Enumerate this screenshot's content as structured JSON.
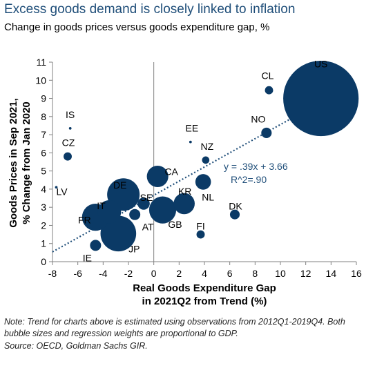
{
  "title": "Excess goods demand is closely linked to inflation",
  "subtitle": "Change in goods prices versus goods expenditure gap, %",
  "notes": [
    "Note: Trend for charts above is estimated using observations from 2012Q1-2019Q4. Both",
    "bubble sizes and regression weights are proportional to GDP.",
    "Source: OECD, Goldman Sachs GIR."
  ],
  "chart_data": {
    "type": "scatter",
    "title": "",
    "xlabel_lines": [
      "Real Goods Expenditure Gap",
      "in 2021Q2 from Trend (%)"
    ],
    "ylabel_lines": [
      "Goods Prices in Sep 2021,",
      "% Change from Jan 2020"
    ],
    "xlim": [
      -8,
      16
    ],
    "ylim": [
      0,
      11
    ],
    "xticks": [
      -8,
      -6,
      -4,
      -2,
      0,
      2,
      4,
      6,
      8,
      10,
      12,
      14,
      16
    ],
    "yticks": [
      0,
      1,
      2,
      3,
      4,
      5,
      6,
      7,
      8,
      9,
      10,
      11
    ],
    "grid": false,
    "bubble_color": "#0b3a66",
    "trend_color": "#1f4e79",
    "trendline": {
      "slope": 0.39,
      "intercept": 3.66,
      "x_range": [
        -8,
        14.2
      ]
    },
    "equation_lines": [
      "y = .39x + 3.66",
      "R^2=.90"
    ],
    "points": [
      {
        "label": "US",
        "x": 13.2,
        "y": 9.0,
        "size": 21000
      },
      {
        "label": "CL",
        "x": 9.1,
        "y": 9.45,
        "size": 250
      },
      {
        "label": "NO",
        "x": 8.9,
        "y": 7.1,
        "size": 400
      },
      {
        "label": "IS",
        "x": -6.6,
        "y": 7.35,
        "size": 25
      },
      {
        "label": "CZ",
        "x": -6.8,
        "y": 5.8,
        "size": 250
      },
      {
        "label": "EE",
        "x": 2.9,
        "y": 6.6,
        "size": 25
      },
      {
        "label": "NZ",
        "x": 4.1,
        "y": 5.6,
        "size": 200
      },
      {
        "label": "LV",
        "x": -7.7,
        "y": 4.1,
        "size": 25
      },
      {
        "label": "CA",
        "x": 0.3,
        "y": 4.7,
        "size": 1700
      },
      {
        "label": "DE",
        "x": -2.4,
        "y": 3.7,
        "size": 3900
      },
      {
        "label": "SE",
        "x": -0.8,
        "y": 3.2,
        "size": 550
      },
      {
        "label": "KR",
        "x": 2.4,
        "y": 3.2,
        "size": 1650
      },
      {
        "label": "NL",
        "x": 3.9,
        "y": 4.4,
        "size": 900
      },
      {
        "label": "IT",
        "x": -3.5,
        "y": 2.75,
        "size": 2000
      },
      {
        "label": "FR",
        "x": -4.6,
        "y": 2.45,
        "size": 2700
      },
      {
        "label": "AT",
        "x": -1.5,
        "y": 2.6,
        "size": 450
      },
      {
        "label": "GB",
        "x": 0.7,
        "y": 2.85,
        "size": 2700
      },
      {
        "label": "DK",
        "x": 6.4,
        "y": 2.6,
        "size": 350
      },
      {
        "label": "FI",
        "x": 3.7,
        "y": 1.5,
        "size": 250
      },
      {
        "label": "JP",
        "x": -2.8,
        "y": 1.55,
        "size": 4700
      },
      {
        "label": "IE",
        "x": -4.6,
        "y": 0.9,
        "size": 450
      }
    ]
  }
}
